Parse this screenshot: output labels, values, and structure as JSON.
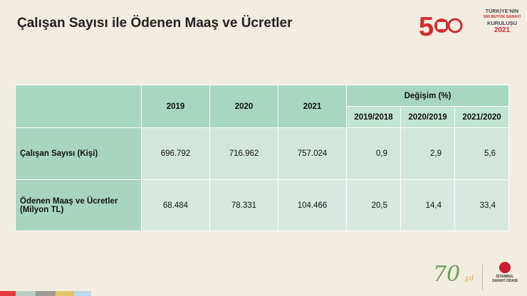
{
  "page": {
    "title": "Çalışan Sayısı ile Ödenen Maaş ve Ücretler"
  },
  "logo": {
    "number": "500",
    "line1": "TÜRKİYE'NİN",
    "line2": "500 BÜYÜK SANAYİ",
    "line3": "KURULUŞU",
    "year": "2021"
  },
  "table": {
    "years": [
      "2019",
      "2020",
      "2021"
    ],
    "change_header": "Değişim (%)",
    "change_periods": [
      "2019/2018",
      "2020/2019",
      "2021/2020"
    ],
    "rows": [
      {
        "label": "Çalışan Sayısı (Kişi)",
        "values": [
          "696.792",
          "716.962",
          "757.024"
        ],
        "changes": [
          "0,9",
          "2,9",
          "5,6"
        ]
      },
      {
        "label_line1": "Ödenen Maaş ve Ücretler",
        "label_line2": "(Milyon TL)",
        "values": [
          "68.484",
          "78.331",
          "104.466"
        ],
        "changes": [
          "20,5",
          "14,4",
          "33,4"
        ]
      }
    ]
  },
  "footer": {
    "anniversary_number": "70",
    "anniversary_suffix": ".yıl",
    "org_line1": "İSTANBUL",
    "org_line2": "SANAYİ ODASI"
  },
  "colors": {
    "background": "#f3ece0",
    "header_dark": "#a7d6c1",
    "header_light": "#c2e4d2",
    "brand_red": "#d42b2b"
  }
}
